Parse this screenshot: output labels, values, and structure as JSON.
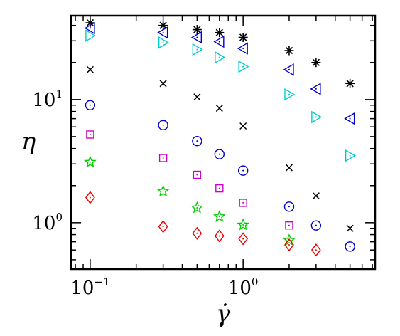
{
  "chart_data": {
    "type": "scatter",
    "xlabel": "γ̇",
    "ylabel": "η",
    "xscale": "log",
    "yscale": "log",
    "xlim": [
      0.075,
      7.3
    ],
    "ylim": [
      0.42,
      48
    ],
    "grid": false,
    "x_tick_labels": [
      {
        "value": 0.1,
        "base": "10",
        "exp": "−1"
      },
      {
        "value": 1,
        "base": "10",
        "exp": "0"
      }
    ],
    "y_tick_labels": [
      {
        "value": 1,
        "base": "10",
        "exp": "0"
      },
      {
        "value": 10,
        "base": "10",
        "exp": "1"
      }
    ],
    "series": [
      {
        "marker": "asterisk",
        "color": "#000000",
        "x": [
          0.1,
          0.3,
          0.5,
          0.7,
          1.0,
          2.0,
          3.0,
          5.0
        ],
        "y": [
          42,
          40,
          37,
          35,
          32,
          25,
          20,
          13.5
        ]
      },
      {
        "marker": "triangle-left",
        "color": "#0000cc",
        "x": [
          0.1,
          0.3,
          0.5,
          0.7,
          1.0,
          2.0,
          3.0,
          5.0
        ],
        "y": [
          38,
          35,
          32,
          29.5,
          26,
          17.5,
          12.2,
          7
        ]
      },
      {
        "marker": "triangle-right",
        "color": "#00cccc",
        "x": [
          0.1,
          0.3,
          0.5,
          0.7,
          1.0,
          2.0,
          3.0,
          5.0
        ],
        "y": [
          33,
          29,
          25.5,
          22,
          18.5,
          11,
          7.2,
          3.5
        ]
      },
      {
        "marker": "cross",
        "color": "#000000",
        "x": [
          0.1,
          0.3,
          0.5,
          0.7,
          1.0,
          2.0,
          3.0,
          5.0
        ],
        "y": [
          17.5,
          13.5,
          10.5,
          8.5,
          6.1,
          2.8,
          1.65,
          0.9
        ]
      },
      {
        "marker": "circle",
        "color": "#0000cc",
        "x": [
          0.1,
          0.3,
          0.5,
          0.7,
          1.0,
          2.0,
          3.0,
          5.0
        ],
        "y": [
          9,
          6.2,
          4.6,
          3.6,
          2.65,
          1.35,
          0.95,
          0.64
        ]
      },
      {
        "marker": "square",
        "color": "#cc00cc",
        "x": [
          0.1,
          0.3,
          0.5,
          0.7,
          1.0,
          2.0
        ],
        "y": [
          5.2,
          3.35,
          2.45,
          1.9,
          1.45,
          0.95
        ]
      },
      {
        "marker": "star",
        "color": "#00cc00",
        "x": [
          0.1,
          0.3,
          0.5,
          0.7,
          1.0,
          2.0
        ],
        "y": [
          3.1,
          1.8,
          1.32,
          1.12,
          0.96,
          0.72
        ]
      },
      {
        "marker": "diamond",
        "color": "#ee0000",
        "x": [
          0.1,
          0.3,
          0.5,
          0.7,
          1.0,
          2.0,
          3.0
        ],
        "y": [
          1.6,
          0.93,
          0.82,
          0.78,
          0.74,
          0.66,
          0.6
        ]
      }
    ]
  }
}
